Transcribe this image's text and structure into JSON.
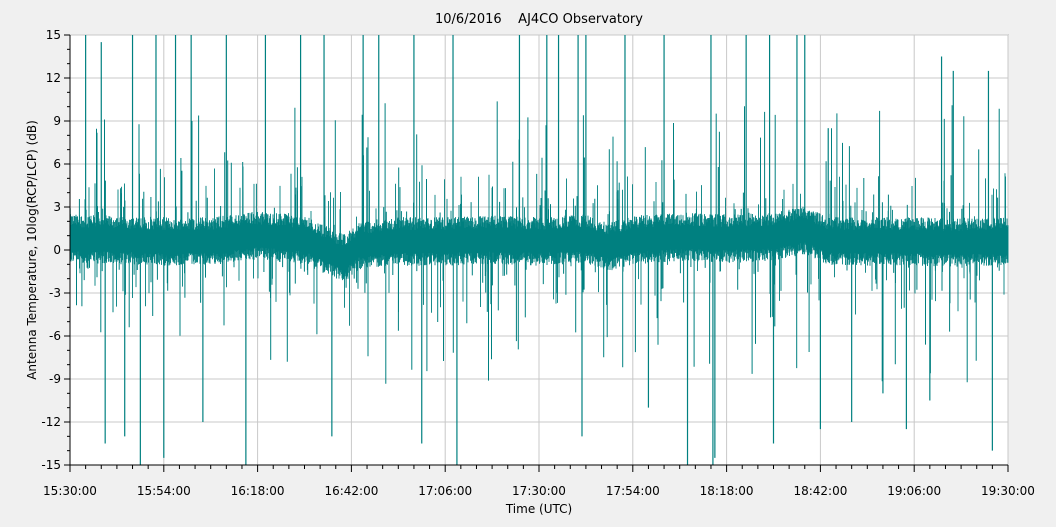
{
  "chart_data": {
    "type": "line",
    "title": "10/6/2016    AJ4CO Observatory",
    "xlabel": "Time (UTC)",
    "ylabel": "Antenna Temperature, 10log(RCP/LCP) (dB)",
    "xlim": [
      "15:30:00",
      "19:30:00"
    ],
    "ylim": [
      -15,
      15
    ],
    "x_ticks": [
      "15:30:00",
      "15:54:00",
      "16:18:00",
      "16:42:00",
      "17:06:00",
      "17:30:00",
      "17:54:00",
      "18:18:00",
      "18:42:00",
      "19:06:00",
      "19:30:00"
    ],
    "y_ticks": [
      15,
      12,
      9,
      6,
      3,
      0,
      -3,
      -6,
      -9,
      -12,
      -15
    ],
    "grid": true,
    "legend": "none",
    "series_color": "#008080",
    "baseline": [
      {
        "time": "15:30:00",
        "value": 0.8
      },
      {
        "time": "15:42:00",
        "value": 0.7
      },
      {
        "time": "15:54:00",
        "value": 0.6
      },
      {
        "time": "16:06:00",
        "value": 0.6
      },
      {
        "time": "16:18:00",
        "value": 1.0
      },
      {
        "time": "16:30:00",
        "value": 0.7
      },
      {
        "time": "16:40:00",
        "value": -0.6
      },
      {
        "time": "16:44:00",
        "value": 0.3
      },
      {
        "time": "16:54:00",
        "value": 0.6
      },
      {
        "time": "17:06:00",
        "value": 0.6
      },
      {
        "time": "17:18:00",
        "value": 0.7
      },
      {
        "time": "17:30:00",
        "value": 0.6
      },
      {
        "time": "17:42:00",
        "value": 0.8
      },
      {
        "time": "17:48:00",
        "value": 0.2
      },
      {
        "time": "17:54:00",
        "value": 0.7
      },
      {
        "time": "18:06:00",
        "value": 0.9
      },
      {
        "time": "18:18:00",
        "value": 0.8
      },
      {
        "time": "18:30:00",
        "value": 0.9
      },
      {
        "time": "18:38:00",
        "value": 1.4
      },
      {
        "time": "18:44:00",
        "value": 0.6
      },
      {
        "time": "18:54:00",
        "value": 0.6
      },
      {
        "time": "19:06:00",
        "value": 0.6
      },
      {
        "time": "19:18:00",
        "value": 0.5
      },
      {
        "time": "19:30:00",
        "value": 0.6
      }
    ],
    "spikes": [
      {
        "time": "15:34:00",
        "peak": 15
      },
      {
        "time": "15:38:00",
        "peak": 14.5
      },
      {
        "time": "15:39:00",
        "peak": -13.5
      },
      {
        "time": "15:44:00",
        "peak": -13
      },
      {
        "time": "15:46:00",
        "peak": 15
      },
      {
        "time": "15:48:00",
        "peak": -15
      },
      {
        "time": "15:52:00",
        "peak": 15
      },
      {
        "time": "15:54:00",
        "peak": -14.5
      },
      {
        "time": "15:57:00",
        "peak": 15
      },
      {
        "time": "16:01:00",
        "peak": 15
      },
      {
        "time": "16:04:00",
        "peak": -12
      },
      {
        "time": "16:10:00",
        "peak": 15
      },
      {
        "time": "16:15:00",
        "peak": -15
      },
      {
        "time": "16:20:00",
        "peak": 15
      },
      {
        "time": "16:29:00",
        "peak": 15
      },
      {
        "time": "16:35:00",
        "peak": 15
      },
      {
        "time": "16:37:00",
        "peak": -13
      },
      {
        "time": "16:45:00",
        "peak": 15
      },
      {
        "time": "16:49:00",
        "peak": 15
      },
      {
        "time": "16:58:00",
        "peak": 15
      },
      {
        "time": "17:00:00",
        "peak": -13.5
      },
      {
        "time": "17:08:00",
        "peak": 15
      },
      {
        "time": "17:09:00",
        "peak": -15
      },
      {
        "time": "17:25:00",
        "peak": 15
      },
      {
        "time": "17:32:00",
        "peak": 15
      },
      {
        "time": "17:35:00",
        "peak": 15
      },
      {
        "time": "17:40:00",
        "peak": 15
      },
      {
        "time": "17:41:00",
        "peak": -13
      },
      {
        "time": "17:42:00",
        "peak": 15
      },
      {
        "time": "17:52:00",
        "peak": 15
      },
      {
        "time": "17:58:00",
        "peak": -11
      },
      {
        "time": "18:02:00",
        "peak": 15
      },
      {
        "time": "18:08:00",
        "peak": -15
      },
      {
        "time": "18:14:00",
        "peak": 15
      },
      {
        "time": "18:14:30",
        "peak": -15
      },
      {
        "time": "18:15:00",
        "peak": -14.5
      },
      {
        "time": "18:23:00",
        "peak": 15
      },
      {
        "time": "18:29:00",
        "peak": 15
      },
      {
        "time": "18:30:00",
        "peak": -13.5
      },
      {
        "time": "18:36:00",
        "peak": 15
      },
      {
        "time": "18:38:00",
        "peak": 15
      },
      {
        "time": "18:42:00",
        "peak": -12.5
      },
      {
        "time": "18:44:00",
        "peak": 8.5
      },
      {
        "time": "18:50:00",
        "peak": -12
      },
      {
        "time": "18:58:00",
        "peak": -10
      },
      {
        "time": "19:04:00",
        "peak": -12.5
      },
      {
        "time": "19:10:00",
        "peak": -10.5
      },
      {
        "time": "19:13:00",
        "peak": 13.5
      },
      {
        "time": "19:16:00",
        "peak": 12.5
      },
      {
        "time": "19:25:00",
        "peak": 12.5
      },
      {
        "time": "19:26:00",
        "peak": -14
      }
    ]
  }
}
